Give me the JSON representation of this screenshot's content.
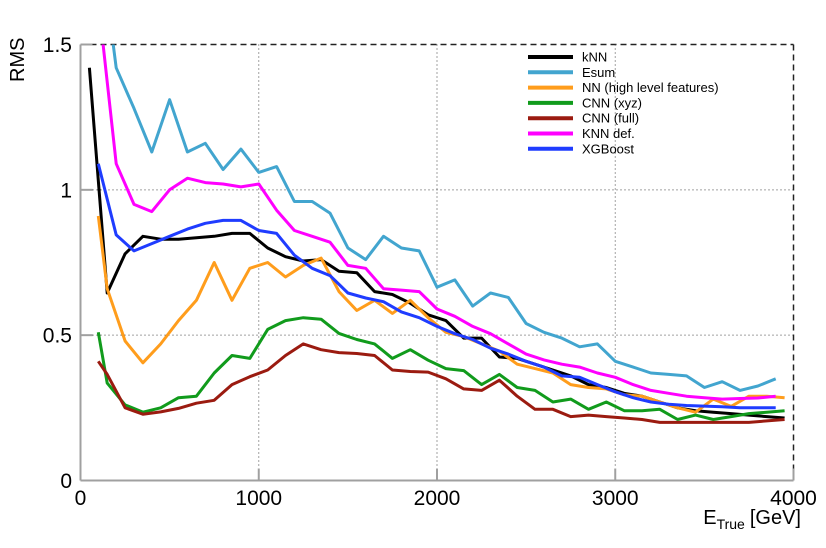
{
  "page": {
    "background": "#ffffff"
  },
  "chart_data": {
    "type": "line",
    "title": "",
    "ylabel": "RMS",
    "xlabel_main": "E",
    "xlabel_sub": "True",
    "xlabel_unit": "[GeV]",
    "xlim": [
      0,
      4000
    ],
    "ylim": [
      0,
      1.5
    ],
    "xticks": [
      0,
      1000,
      2000,
      3000,
      4000
    ],
    "xtick_labels": [
      "0",
      "1000",
      "2000",
      "3000",
      "4000"
    ],
    "yticks": [
      0,
      0.5,
      1,
      1.5
    ],
    "ytick_labels": [
      "0",
      "0.5",
      "1",
      "1.5"
    ],
    "grid": true,
    "grid_style": "dotted-black",
    "legend_position": "top-right",
    "axis_color": "#a0a0a0",
    "series": [
      {
        "name": "kNN",
        "color": "#000000",
        "x": [
          50,
          150,
          250,
          350,
          450,
          550,
          650,
          750,
          850,
          950,
          1050,
          1150,
          1250,
          1350,
          1450,
          1550,
          1650,
          1750,
          1850,
          1950,
          2050,
          2150,
          2250,
          2350,
          2450,
          2550,
          2650,
          2750,
          2850,
          2950,
          3050,
          3150,
          3250,
          3350,
          3450,
          3550,
          3650,
          3750,
          3850,
          3950
        ],
        "values": [
          1.42,
          0.645,
          0.78,
          0.84,
          0.83,
          0.83,
          0.835,
          0.84,
          0.85,
          0.85,
          0.8,
          0.77,
          0.755,
          0.76,
          0.72,
          0.715,
          0.65,
          0.64,
          0.61,
          0.57,
          0.55,
          0.49,
          0.49,
          0.425,
          0.42,
          0.4,
          0.38,
          0.36,
          0.33,
          0.32,
          0.3,
          0.29,
          0.27,
          0.25,
          0.24,
          0.235,
          0.23,
          0.225,
          0.22,
          0.215
        ]
      },
      {
        "name": "Esum",
        "color": "#42a5cf",
        "x": [
          100,
          200,
          300,
          400,
          500,
          600,
          700,
          800,
          900,
          1000,
          1100,
          1200,
          1300,
          1400,
          1500,
          1600,
          1700,
          1800,
          1900,
          2000,
          2100,
          2200,
          2300,
          2400,
          2500,
          2600,
          2700,
          2800,
          2900,
          3000,
          3100,
          3200,
          3300,
          3400,
          3500,
          3600,
          3700,
          3800,
          3900
        ],
        "values": [
          1.9,
          1.42,
          1.28,
          1.13,
          1.31,
          1.13,
          1.16,
          1.07,
          1.14,
          1.06,
          1.08,
          0.96,
          0.96,
          0.92,
          0.8,
          0.76,
          0.84,
          0.8,
          0.79,
          0.665,
          0.69,
          0.6,
          0.645,
          0.63,
          0.54,
          0.51,
          0.49,
          0.46,
          0.47,
          0.41,
          0.39,
          0.37,
          0.365,
          0.36,
          0.32,
          0.34,
          0.31,
          0.325,
          0.35
        ]
      },
      {
        "name": "NN (high level features)",
        "color": "#ff9d1c",
        "x": [
          100,
          150,
          250,
          350,
          450,
          550,
          650,
          750,
          850,
          950,
          1050,
          1150,
          1250,
          1350,
          1450,
          1550,
          1650,
          1750,
          1850,
          1950,
          2050,
          2150,
          2250,
          2350,
          2450,
          2550,
          2650,
          2750,
          2850,
          2950,
          3050,
          3150,
          3250,
          3350,
          3450,
          3550,
          3650,
          3750,
          3850,
          3950
        ],
        "values": [
          0.91,
          0.66,
          0.48,
          0.405,
          0.47,
          0.55,
          0.62,
          0.75,
          0.62,
          0.73,
          0.75,
          0.7,
          0.74,
          0.765,
          0.65,
          0.585,
          0.62,
          0.575,
          0.62,
          0.56,
          0.51,
          0.495,
          0.47,
          0.445,
          0.4,
          0.385,
          0.37,
          0.33,
          0.32,
          0.315,
          0.295,
          0.29,
          0.27,
          0.25,
          0.235,
          0.28,
          0.255,
          0.29,
          0.29,
          0.285
        ]
      },
      {
        "name": "CNN (xyz)",
        "color": "#119b1c",
        "x": [
          100,
          150,
          250,
          350,
          450,
          550,
          650,
          750,
          850,
          950,
          1050,
          1150,
          1250,
          1350,
          1450,
          1550,
          1650,
          1750,
          1850,
          1950,
          2050,
          2150,
          2250,
          2350,
          2450,
          2550,
          2650,
          2750,
          2850,
          2950,
          3050,
          3150,
          3250,
          3350,
          3450,
          3550,
          3650,
          3750,
          3850,
          3950
        ],
        "values": [
          0.51,
          0.335,
          0.26,
          0.235,
          0.25,
          0.285,
          0.29,
          0.37,
          0.43,
          0.42,
          0.52,
          0.55,
          0.56,
          0.555,
          0.506,
          0.485,
          0.47,
          0.42,
          0.45,
          0.414,
          0.385,
          0.378,
          0.33,
          0.365,
          0.32,
          0.31,
          0.27,
          0.28,
          0.245,
          0.27,
          0.24,
          0.24,
          0.245,
          0.21,
          0.225,
          0.21,
          0.22,
          0.23,
          0.235,
          0.24
        ]
      },
      {
        "name": "CNN (full)",
        "color": "#9b1b10",
        "x": [
          100,
          150,
          250,
          350,
          450,
          550,
          650,
          750,
          850,
          950,
          1050,
          1150,
          1250,
          1350,
          1450,
          1550,
          1650,
          1750,
          1850,
          1950,
          2050,
          2150,
          2250,
          2350,
          2450,
          2550,
          2650,
          2750,
          2850,
          2950,
          3050,
          3150,
          3250,
          3350,
          3450,
          3550,
          3650,
          3750,
          3850,
          3950
        ],
        "values": [
          0.41,
          0.365,
          0.25,
          0.228,
          0.236,
          0.248,
          0.266,
          0.276,
          0.33,
          0.357,
          0.38,
          0.43,
          0.47,
          0.45,
          0.44,
          0.437,
          0.43,
          0.38,
          0.375,
          0.373,
          0.35,
          0.315,
          0.31,
          0.345,
          0.29,
          0.245,
          0.245,
          0.22,
          0.225,
          0.22,
          0.215,
          0.21,
          0.2,
          0.2,
          0.2,
          0.2,
          0.2,
          0.2,
          0.205,
          0.21
        ]
      },
      {
        "name": "KNN def.",
        "color": "#ff00ff",
        "x": [
          100,
          200,
          300,
          400,
          500,
          600,
          700,
          800,
          900,
          1000,
          1100,
          1200,
          1300,
          1400,
          1500,
          1600,
          1700,
          1800,
          1900,
          2000,
          2100,
          2200,
          2300,
          2400,
          2500,
          2600,
          2700,
          2800,
          2900,
          3000,
          3100,
          3200,
          3300,
          3400,
          3500,
          3600,
          3700,
          3800,
          3900
        ],
        "values": [
          1.65,
          1.09,
          0.95,
          0.925,
          1.0,
          1.04,
          1.025,
          1.02,
          1.01,
          1.02,
          0.93,
          0.86,
          0.84,
          0.82,
          0.74,
          0.73,
          0.66,
          0.655,
          0.65,
          0.59,
          0.565,
          0.53,
          0.505,
          0.47,
          0.435,
          0.415,
          0.4,
          0.39,
          0.37,
          0.355,
          0.33,
          0.31,
          0.3,
          0.29,
          0.285,
          0.28,
          0.282,
          0.284,
          0.29
        ]
      },
      {
        "name": "XGBoost",
        "color": "#1f3cff",
        "x": [
          100,
          200,
          300,
          400,
          500,
          600,
          700,
          800,
          900,
          1000,
          1100,
          1200,
          1300,
          1400,
          1500,
          1600,
          1700,
          1800,
          1900,
          2000,
          2100,
          2200,
          2300,
          2400,
          2500,
          2600,
          2700,
          2800,
          2900,
          3000,
          3100,
          3200,
          3300,
          3400,
          3500,
          3600,
          3700,
          3800,
          3900
        ],
        "values": [
          1.09,
          0.845,
          0.79,
          0.815,
          0.84,
          0.865,
          0.885,
          0.895,
          0.895,
          0.86,
          0.85,
          0.775,
          0.73,
          0.705,
          0.645,
          0.628,
          0.615,
          0.58,
          0.56,
          0.53,
          0.505,
          0.485,
          0.455,
          0.435,
          0.41,
          0.39,
          0.36,
          0.355,
          0.33,
          0.305,
          0.285,
          0.27,
          0.262,
          0.258,
          0.256,
          0.254,
          0.25,
          0.25,
          0.25
        ]
      }
    ]
  }
}
